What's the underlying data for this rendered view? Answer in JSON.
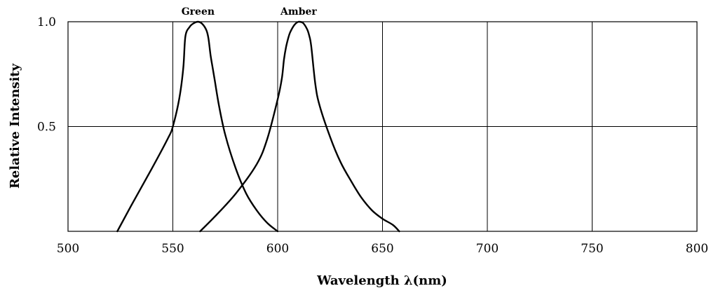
{
  "chart_data": {
    "type": "line",
    "title": "",
    "xlabel": "Wavelength λ(nm)",
    "ylabel": "Relative Intensity",
    "xlim": [
      500,
      800
    ],
    "ylim": [
      0,
      1.0
    ],
    "x_ticks": [
      500,
      550,
      600,
      650,
      700,
      750,
      800
    ],
    "y_ticks": [
      0.5,
      1.0
    ],
    "x_tick_labels": [
      "500",
      "550",
      "600",
      "650",
      "700",
      "750",
      "800"
    ],
    "y_tick_labels": [
      "0.5",
      "1.0"
    ],
    "grid": true,
    "colors": {
      "line": "#000000",
      "grid": "#000000",
      "background": "#ffffff"
    },
    "series": [
      {
        "name": "Green",
        "x": [
          523.5,
          530,
          540,
          548,
          550,
          553,
          555,
          556,
          558,
          560,
          562,
          564,
          566,
          567,
          568,
          569,
          570,
          572,
          575,
          580,
          585,
          590,
          595,
          600
        ],
        "y": [
          0.0,
          0.12,
          0.3,
          0.45,
          0.5,
          0.63,
          0.78,
          0.93,
          0.975,
          0.993,
          1.0,
          0.99,
          0.96,
          0.92,
          0.84,
          0.78,
          0.72,
          0.6,
          0.46,
          0.3,
          0.18,
          0.1,
          0.04,
          0.0
        ]
      },
      {
        "name": "Amber",
        "x": [
          563,
          570,
          580,
          590,
          595,
          600,
          602,
          603,
          604,
          605,
          606,
          608,
          610,
          612,
          614,
          615,
          616,
          618,
          620,
          625,
          630,
          635,
          640,
          645,
          650,
          655,
          658
        ],
        "y": [
          0.0,
          0.07,
          0.18,
          0.32,
          0.44,
          0.63,
          0.73,
          0.82,
          0.88,
          0.92,
          0.95,
          0.985,
          1.0,
          0.995,
          0.965,
          0.935,
          0.885,
          0.7,
          0.6,
          0.45,
          0.33,
          0.24,
          0.16,
          0.1,
          0.06,
          0.03,
          0.0
        ]
      }
    ]
  }
}
